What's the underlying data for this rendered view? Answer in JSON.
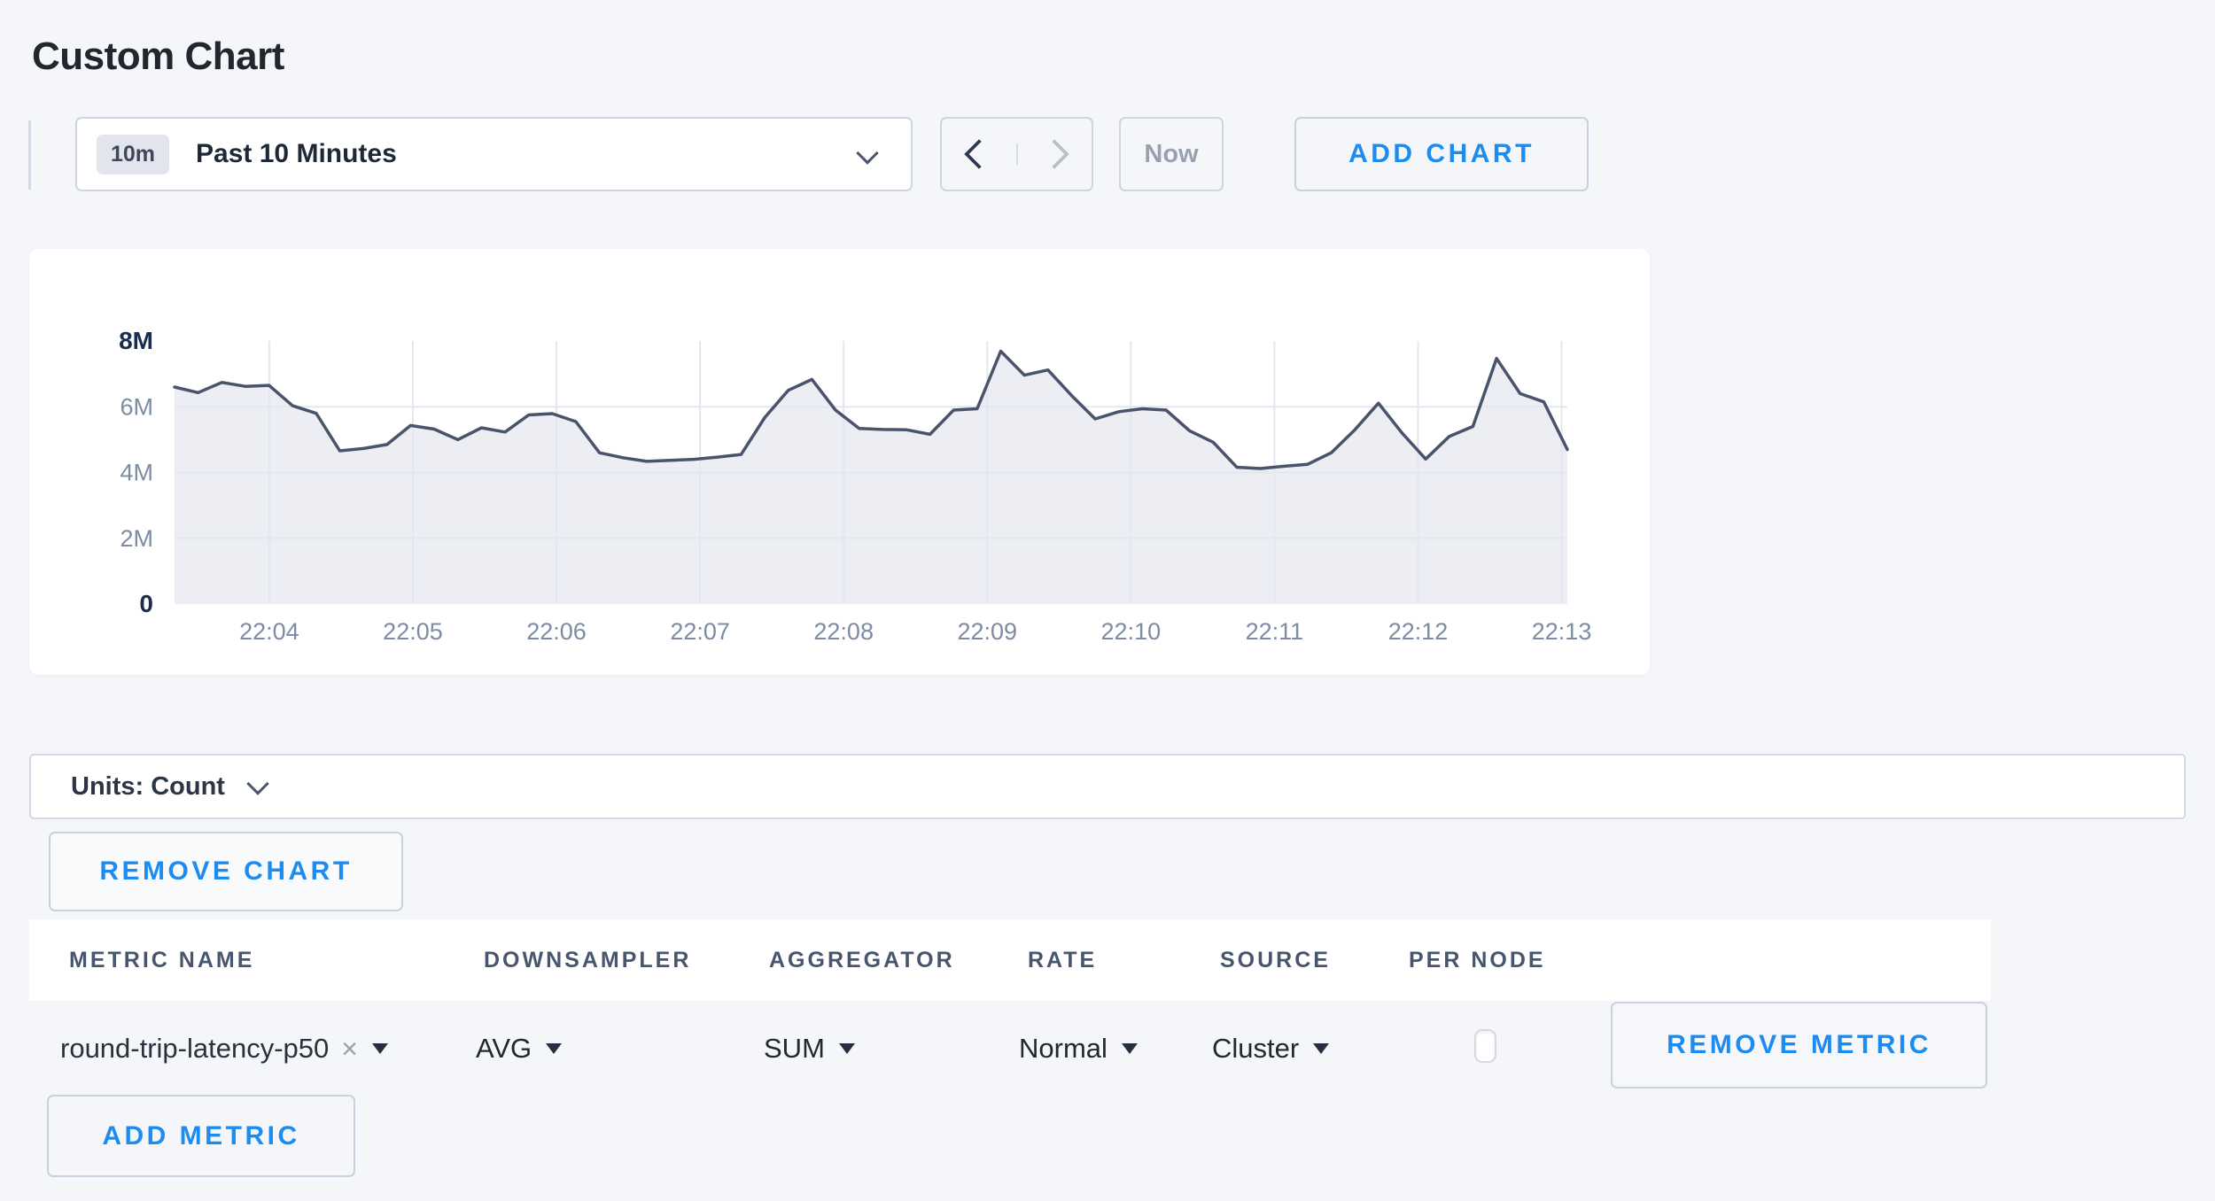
{
  "page": {
    "title": "Custom Chart",
    "background": "#f4f6fa",
    "accent_blue": "#1d8cf0"
  },
  "toolbar": {
    "time_range": {
      "badge": "10m",
      "label": "Past 10 Minutes"
    },
    "now_label": "Now",
    "add_chart_label": "ADD CHART"
  },
  "chart_data": {
    "type": "area",
    "title": "",
    "xlabel": "",
    "ylabel": "",
    "x_ticks": [
      "22:04",
      "22:05",
      "22:06",
      "22:07",
      "22:08",
      "22:09",
      "22:10",
      "22:11",
      "22:12",
      "22:13"
    ],
    "y_ticks": [
      {
        "label": "0",
        "value": 0,
        "strong": true
      },
      {
        "label": "2M",
        "value": 2000000,
        "strong": false
      },
      {
        "label": "4M",
        "value": 4000000,
        "strong": false
      },
      {
        "label": "6M",
        "value": 6000000,
        "strong": false
      },
      {
        "label": "8M",
        "value": 8000000,
        "strong": true
      }
    ],
    "ylim": [
      0,
      8000000
    ],
    "grid": true,
    "legend": "none",
    "line_color": "#49536b",
    "fill_color": "rgba(231,234,241,0.8)",
    "grid_color": "#e3e7ef",
    "tick_label_color": "#7d8ca2",
    "strong_tick_color": "#1b2c4e",
    "first_tick_frac": 0.068,
    "tick_step_frac": 0.1031,
    "values_millions": [
      6.6,
      6.43,
      6.74,
      6.62,
      6.65,
      6.03,
      5.8,
      4.66,
      4.73,
      4.85,
      5.43,
      5.32,
      5.0,
      5.36,
      5.23,
      5.75,
      5.79,
      5.55,
      4.6,
      4.45,
      4.34,
      4.37,
      4.4,
      4.47,
      4.55,
      5.67,
      6.5,
      6.83,
      5.9,
      5.34,
      5.31,
      5.3,
      5.16,
      5.9,
      5.94,
      7.69,
      6.96,
      7.12,
      6.34,
      5.63,
      5.85,
      5.94,
      5.9,
      5.27,
      4.92,
      4.16,
      4.12,
      4.19,
      4.25,
      4.6,
      5.3,
      6.11,
      5.2,
      4.41,
      5.1,
      5.4,
      7.47,
      6.4,
      6.15,
      4.7
    ]
  },
  "units_bar": {
    "label": "Units: Count"
  },
  "chart_actions": {
    "remove_chart_label": "REMOVE CHART"
  },
  "metrics_table": {
    "headers": [
      "METRIC NAME",
      "DOWNSAMPLER",
      "AGGREGATOR",
      "RATE",
      "SOURCE",
      "PER NODE"
    ],
    "rows": [
      {
        "metric_name": "round-trip-latency-p50",
        "downsampler": "AVG",
        "aggregator": "SUM",
        "rate": "Normal",
        "source": "Cluster",
        "per_node_checked": false,
        "remove_label": "REMOVE METRIC"
      }
    ],
    "add_metric_label": "ADD METRIC"
  }
}
